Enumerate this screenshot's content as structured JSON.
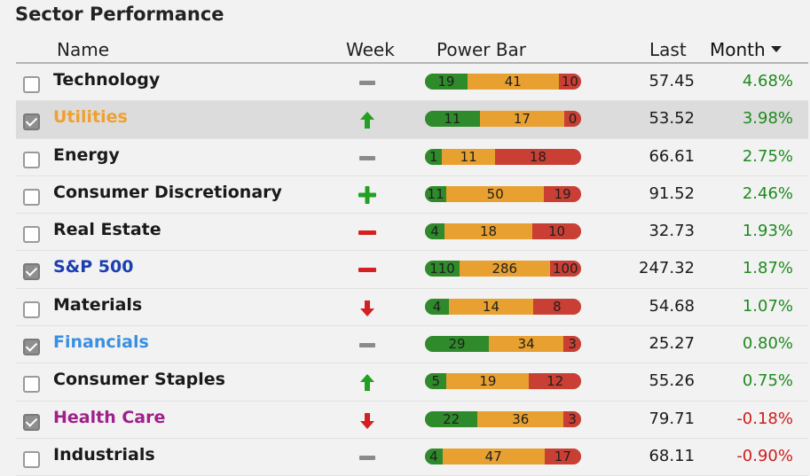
{
  "title": "Sector Performance",
  "columns": {
    "name": "Name",
    "week": "Week",
    "power": "Power Bar",
    "last": "Last",
    "month": "Month"
  },
  "colors": {
    "positive": "#1e8a1e",
    "negative": "#d01c1c",
    "up": "#22a022",
    "down": "#d42020",
    "flat": "#8a8a8a"
  },
  "rows": [
    {
      "name": "Technology",
      "checked": false,
      "highlight": false,
      "color": "#1a1a1a",
      "week": "flat",
      "power": [
        19,
        41,
        10
      ],
      "last": "57.45",
      "month": "4.68%",
      "month_sign": "pos"
    },
    {
      "name": "Utilities",
      "checked": true,
      "highlight": true,
      "color": "#f0a030",
      "week": "up",
      "power": [
        11,
        17,
        0
      ],
      "last": "53.52",
      "month": "3.98%",
      "month_sign": "pos"
    },
    {
      "name": "Energy",
      "checked": false,
      "highlight": false,
      "color": "#1a1a1a",
      "week": "flat",
      "power": [
        1,
        11,
        18
      ],
      "last": "66.61",
      "month": "2.75%",
      "month_sign": "pos"
    },
    {
      "name": "Consumer Discretionary",
      "checked": false,
      "highlight": false,
      "color": "#1a1a1a",
      "week": "strong-up",
      "power": [
        11,
        50,
        19
      ],
      "last": "91.52",
      "month": "2.46%",
      "month_sign": "pos"
    },
    {
      "name": "Real Estate",
      "checked": false,
      "highlight": false,
      "color": "#1a1a1a",
      "week": "strong-down",
      "power": [
        4,
        18,
        10
      ],
      "last": "32.73",
      "month": "1.93%",
      "month_sign": "pos"
    },
    {
      "name": "S&P 500",
      "checked": true,
      "highlight": false,
      "color": "#1c3fb0",
      "week": "strong-down",
      "power": [
        110,
        286,
        100
      ],
      "last": "247.32",
      "month": "1.87%",
      "month_sign": "pos"
    },
    {
      "name": "Materials",
      "checked": false,
      "highlight": false,
      "color": "#1a1a1a",
      "week": "down",
      "power": [
        4,
        14,
        8
      ],
      "last": "54.68",
      "month": "1.07%",
      "month_sign": "pos"
    },
    {
      "name": "Financials",
      "checked": true,
      "highlight": false,
      "color": "#3a8fe0",
      "week": "flat",
      "power": [
        29,
        34,
        3
      ],
      "last": "25.27",
      "month": "0.80%",
      "month_sign": "pos"
    },
    {
      "name": "Consumer Staples",
      "checked": false,
      "highlight": false,
      "color": "#1a1a1a",
      "week": "up",
      "power": [
        5,
        19,
        12
      ],
      "last": "55.26",
      "month": "0.75%",
      "month_sign": "pos"
    },
    {
      "name": "Health Care",
      "checked": true,
      "highlight": false,
      "color": "#a0208a",
      "week": "down",
      "power": [
        22,
        36,
        3
      ],
      "last": "79.71",
      "month": "-0.18%",
      "month_sign": "neg"
    },
    {
      "name": "Industrials",
      "checked": false,
      "highlight": false,
      "color": "#1a1a1a",
      "week": "flat",
      "power": [
        4,
        47,
        17
      ],
      "last": "68.11",
      "month": "-0.90%",
      "month_sign": "neg"
    }
  ]
}
